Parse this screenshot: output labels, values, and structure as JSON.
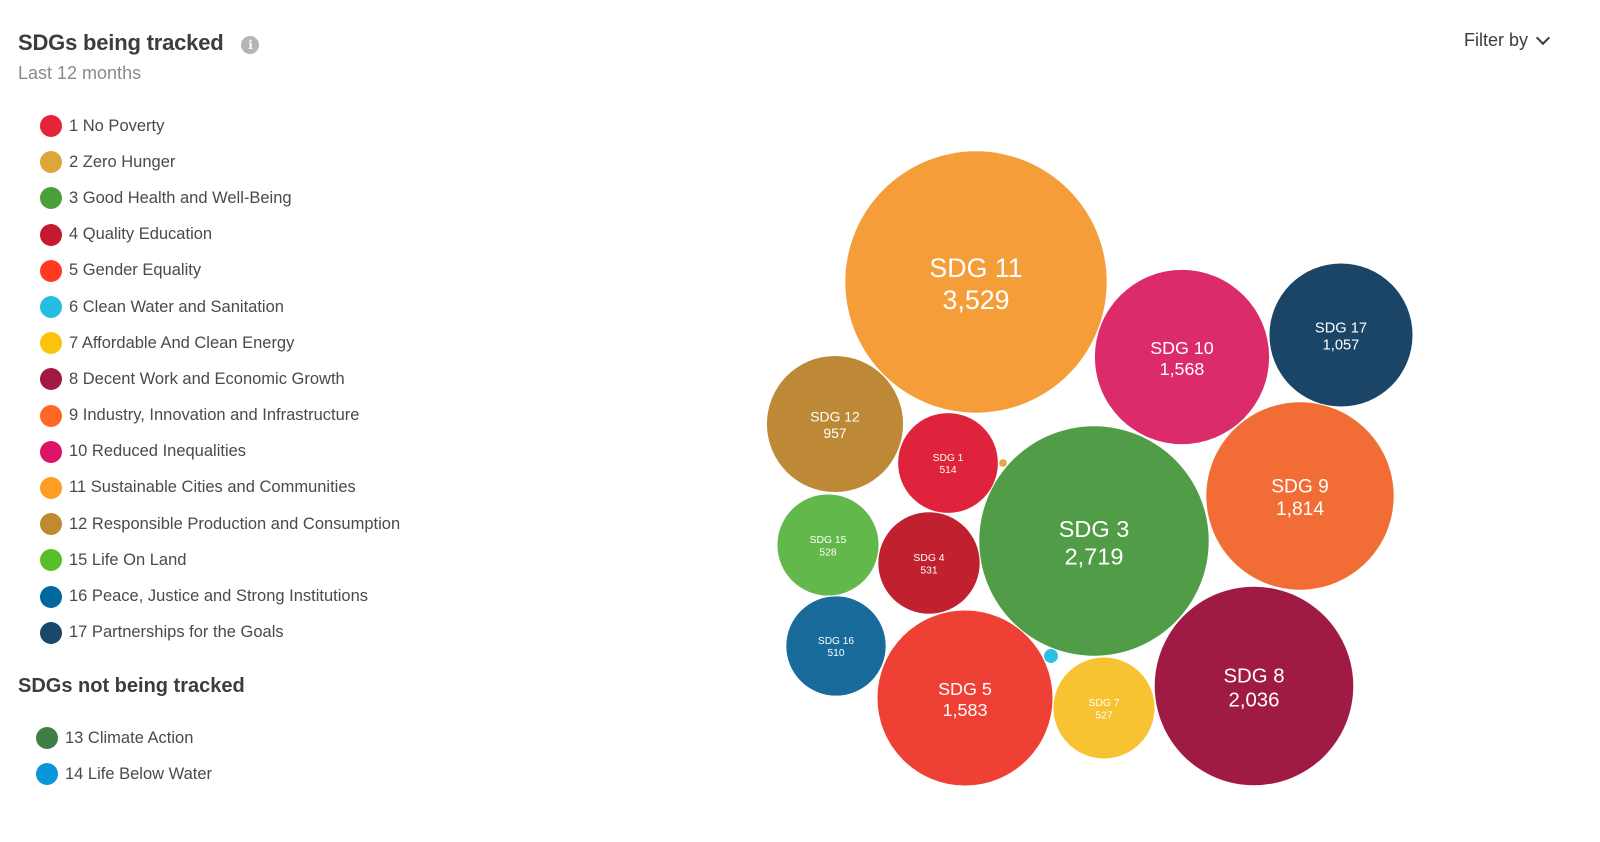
{
  "header": {
    "title": "SDGs being tracked",
    "info_icon": "info-icon",
    "subtitle": "Last 12 months",
    "filter_label": "Filter by",
    "filter_icon": "chevron-down-icon"
  },
  "tracked_legend": [
    {
      "label": "1 No Poverty",
      "color": "#e5243b"
    },
    {
      "label": "2 Zero Hunger",
      "color": "#dda63a"
    },
    {
      "label": "3 Good Health and Well-Being",
      "color": "#4c9f38"
    },
    {
      "label": "4 Quality Education",
      "color": "#c5192d"
    },
    {
      "label": "5 Gender Equality",
      "color": "#ff3a21"
    },
    {
      "label": "6 Clean Water and Sanitation",
      "color": "#26bde2"
    },
    {
      "label": "7 Affordable And Clean Energy",
      "color": "#fcc30b"
    },
    {
      "label": "8 Decent Work and Economic Growth",
      "color": "#a21942"
    },
    {
      "label": "9 Industry, Innovation and Infrastructure",
      "color": "#fd6925"
    },
    {
      "label": "10 Reduced Inequalities",
      "color": "#dd1367"
    },
    {
      "label": "11 Sustainable Cities and Communities",
      "color": "#fd9d24"
    },
    {
      "label": "12 Responsible Production and Consumption",
      "color": "#bf8b2e"
    },
    {
      "label": "15 Life On Land",
      "color": "#56c02b"
    },
    {
      "label": "16 Peace, Justice and Strong Institutions",
      "color": "#00689d"
    },
    {
      "label": "17 Partnerships for the Goals",
      "color": "#19486a"
    }
  ],
  "untracked_section": {
    "title": "SDGs not being tracked",
    "items": [
      {
        "label": "13 Climate Action",
        "color": "#3f7e44"
      },
      {
        "label": "14 Life Below Water",
        "color": "#0a97d9"
      }
    ]
  },
  "chart_data": {
    "type": "bubble",
    "title": "SDGs being tracked",
    "subtitle": "Last 12 months",
    "series": [
      {
        "sdg": 11,
        "label": "SDG 11",
        "value_label": "3,529",
        "value": 3529,
        "color": "#f59e39"
      },
      {
        "sdg": 3,
        "label": "SDG 3",
        "value_label": "2,719",
        "value": 2719,
        "color": "#519c47"
      },
      {
        "sdg": 8,
        "label": "SDG 8",
        "value_label": "2,036",
        "value": 2036,
        "color": "#a01b44"
      },
      {
        "sdg": 9,
        "label": "SDG 9",
        "value_label": "1,814",
        "value": 1814,
        "color": "#f26c36"
      },
      {
        "sdg": 5,
        "label": "SDG 5",
        "value_label": "1,583",
        "value": 1583,
        "color": "#ef4036"
      },
      {
        "sdg": 10,
        "label": "SDG 10",
        "value_label": "1,568",
        "value": 1568,
        "color": "#dc2b6b"
      },
      {
        "sdg": 17,
        "label": "SDG 17",
        "value_label": "1,057",
        "value": 1057,
        "color": "#1b4566"
      },
      {
        "sdg": 12,
        "label": "SDG 12",
        "value_label": "957",
        "value": 957,
        "color": "#bd8936"
      },
      {
        "sdg": 4,
        "label": "SDG 4",
        "value_label": "531",
        "value": 531,
        "color": "#c1202e"
      },
      {
        "sdg": 15,
        "label": "SDG 15",
        "value_label": "528",
        "value": 528,
        "color": "#63b84c"
      },
      {
        "sdg": 7,
        "label": "SDG 7",
        "value_label": "527",
        "value": 527,
        "color": "#f8c332"
      },
      {
        "sdg": 1,
        "label": "SDG 1",
        "value_label": "514",
        "value": 514,
        "color": "#e0233c"
      },
      {
        "sdg": 16,
        "label": "SDG 16",
        "value_label": "510",
        "value": 510,
        "color": "#186b9b"
      },
      {
        "sdg": 6,
        "label": "",
        "value_label": "",
        "value": 10,
        "color": "#2dbfe3"
      },
      {
        "sdg": 2,
        "label": "",
        "value_label": "",
        "value": 3,
        "color": "#e0a840"
      }
    ]
  }
}
